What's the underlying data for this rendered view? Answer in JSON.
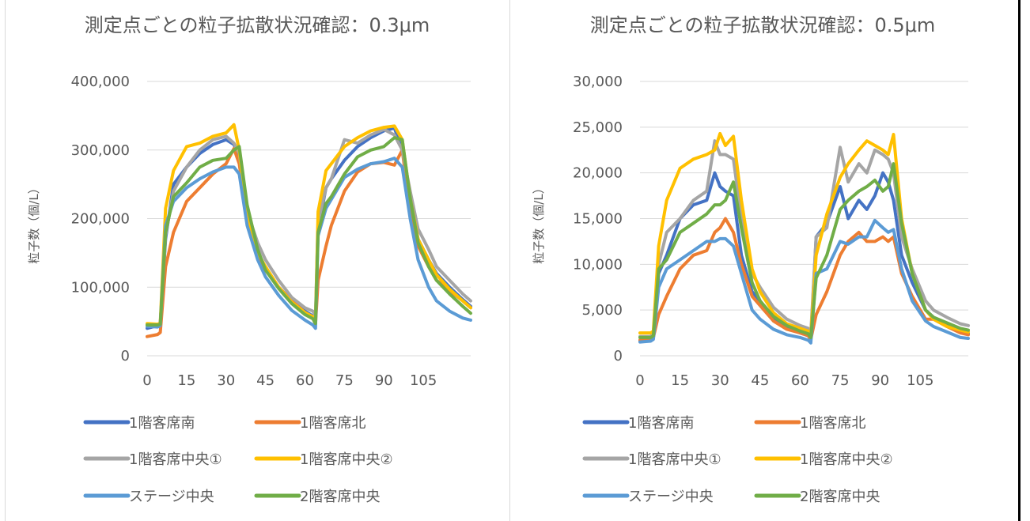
{
  "chart_data": [
    {
      "type": "line",
      "title": "測定点ごとの粒子拡散状況確認：0.3μm",
      "ylabel": "粒子数（個/L）",
      "xlabel": "",
      "ylim": [
        0,
        400000
      ],
      "xlim": [
        0,
        123
      ],
      "yticks": [
        0,
        100000,
        200000,
        300000,
        400000
      ],
      "yticklabels": [
        "0",
        "100,000",
        "200,000",
        "300,000",
        "400,000"
      ],
      "xticks": [
        0,
        15,
        30,
        45,
        60,
        75,
        90,
        105
      ],
      "xticklabels": [
        "0",
        "15",
        "30",
        "45",
        "60",
        "75",
        "90",
        "105"
      ],
      "grid": true,
      "legend": "bottom",
      "x": [
        0,
        4,
        5,
        7,
        10,
        15,
        20,
        25,
        30,
        33,
        35,
        38,
        42,
        45,
        50,
        55,
        60,
        63,
        64,
        65,
        68,
        70,
        75,
        80,
        85,
        90,
        94,
        97,
        100,
        103,
        107,
        110,
        115,
        120,
        123
      ],
      "series": [
        {
          "name": "1階客席南",
          "color": "#4472c4",
          "values": [
            40000,
            44000,
            47000,
            170000,
            250000,
            275000,
            295000,
            308000,
            315000,
            308000,
            290000,
            200000,
            150000,
            125000,
            100000,
            80000,
            65000,
            58000,
            52000,
            185000,
            245000,
            258000,
            285000,
            305000,
            318000,
            328000,
            332000,
            300000,
            230000,
            170000,
            140000,
            120000,
            100000,
            82000,
            72000
          ]
        },
        {
          "name": "1階客席北",
          "color": "#ed7d31",
          "values": [
            28000,
            31000,
            34000,
            130000,
            180000,
            225000,
            245000,
            265000,
            280000,
            302000,
            280000,
            200000,
            150000,
            125000,
            100000,
            80000,
            63000,
            55000,
            46000,
            110000,
            160000,
            190000,
            240000,
            268000,
            280000,
            282000,
            278000,
            300000,
            210000,
            160000,
            130000,
            110000,
            95000,
            80000,
            70000
          ]
        },
        {
          "name": "1階客席中央①",
          "color": "#a5a5a5",
          "values": [
            44000,
            44000,
            46000,
            175000,
            240000,
            275000,
            300000,
            315000,
            320000,
            310000,
            295000,
            210000,
            165000,
            140000,
            110000,
            85000,
            70000,
            65000,
            58000,
            195000,
            245000,
            258000,
            315000,
            310000,
            322000,
            330000,
            322000,
            300000,
            240000,
            185000,
            155000,
            130000,
            110000,
            90000,
            80000
          ]
        },
        {
          "name": "1階客席中央②",
          "color": "#ffc000",
          "values": [
            47000,
            46000,
            48000,
            215000,
            270000,
            305000,
            310000,
            320000,
            325000,
            337000,
            300000,
            205000,
            150000,
            130000,
            100000,
            78000,
            63000,
            57000,
            47000,
            210000,
            270000,
            280000,
            305000,
            318000,
            328000,
            333000,
            335000,
            315000,
            230000,
            170000,
            140000,
            118000,
            97000,
            80000,
            70000
          ]
        },
        {
          "name": "ステージ中央",
          "color": "#5b9bd5",
          "values": [
            43000,
            42000,
            44000,
            190000,
            225000,
            245000,
            258000,
            268000,
            275000,
            275000,
            265000,
            190000,
            140000,
            115000,
            88000,
            66000,
            52000,
            45000,
            40000,
            175000,
            215000,
            228000,
            260000,
            272000,
            280000,
            283000,
            288000,
            275000,
            200000,
            140000,
            100000,
            80000,
            65000,
            55000,
            52000
          ]
        },
        {
          "name": "2階客席中央",
          "color": "#70ad47",
          "values": [
            45000,
            45000,
            46000,
            180000,
            232000,
            252000,
            275000,
            285000,
            288000,
            300000,
            305000,
            220000,
            155000,
            125000,
            98000,
            76000,
            60000,
            54000,
            47000,
            180000,
            222000,
            232000,
            265000,
            290000,
            300000,
            305000,
            318000,
            315000,
            230000,
            165000,
            130000,
            110000,
            90000,
            72000,
            62000
          ]
        }
      ]
    },
    {
      "type": "line",
      "title": "測定点ごとの粒子拡散状況確認：0.5μm",
      "ylabel": "粒子数（個/L）",
      "xlabel": "",
      "ylim": [
        0,
        30000
      ],
      "xlim": [
        0,
        123
      ],
      "yticks": [
        0,
        5000,
        10000,
        15000,
        20000,
        25000,
        30000
      ],
      "yticklabels": [
        "0",
        "5,000",
        "10,000",
        "15,000",
        "20,000",
        "25,000",
        "30,000"
      ],
      "xticks": [
        0,
        15,
        30,
        45,
        60,
        75,
        90,
        105
      ],
      "xticklabels": [
        "0",
        "15",
        "30",
        "45",
        "60",
        "75",
        "90",
        "105"
      ],
      "grid": true,
      "legend": "bottom",
      "x": [
        0,
        4,
        5,
        7,
        10,
        15,
        20,
        25,
        28,
        30,
        32,
        35,
        38,
        42,
        45,
        50,
        55,
        60,
        63,
        64,
        66,
        70,
        75,
        78,
        82,
        85,
        88,
        91,
        93,
        95,
        98,
        102,
        107,
        110,
        115,
        120,
        123
      ],
      "series": [
        {
          "name": "1階客席南",
          "color": "#4472c4",
          "values": [
            1600,
            1800,
            2200,
            9000,
            11000,
            15000,
            16500,
            17000,
            20000,
            18500,
            18000,
            17500,
            11000,
            7000,
            6000,
            4000,
            3000,
            2500,
            2200,
            1800,
            13000,
            14500,
            18500,
            15000,
            17000,
            16000,
            17500,
            20000,
            19000,
            17000,
            11000,
            8000,
            5000,
            4200,
            3500,
            2700,
            2400
          ]
        },
        {
          "name": "1階客席北",
          "color": "#ed7d31",
          "values": [
            1700,
            1800,
            2000,
            4500,
            6500,
            9500,
            11000,
            11500,
            13500,
            14000,
            15000,
            13500,
            10000,
            6500,
            5500,
            3800,
            2900,
            2500,
            2200,
            1800,
            4500,
            7000,
            11000,
            12500,
            13500,
            12500,
            12500,
            13000,
            12500,
            13000,
            9000,
            6500,
            4000,
            4000,
            3200,
            2500,
            2300
          ]
        },
        {
          "name": "1階客席中央①",
          "color": "#a5a5a5",
          "values": [
            2100,
            2100,
            2400,
            10000,
            13500,
            15000,
            17000,
            18000,
            23500,
            22000,
            22000,
            21500,
            15000,
            9000,
            7500,
            5300,
            4000,
            3300,
            3000,
            2400,
            13000,
            14000,
            22800,
            19000,
            21000,
            20000,
            22500,
            22000,
            21500,
            20000,
            13000,
            9500,
            6000,
            5000,
            4200,
            3500,
            3300
          ]
        },
        {
          "name": "1階客席中央②",
          "color": "#ffc000",
          "values": [
            2500,
            2500,
            2700,
            12000,
            17000,
            20500,
            21500,
            22000,
            22500,
            24300,
            23000,
            24000,
            17000,
            9500,
            7000,
            4700,
            3500,
            3000,
            2700,
            2200,
            11000,
            15500,
            19500,
            21000,
            22500,
            23500,
            23000,
            22500,
            22000,
            24200,
            15000,
            9000,
            5000,
            4000,
            3200,
            2800,
            2600
          ]
        },
        {
          "name": "ステージ中央",
          "color": "#5b9bd5",
          "values": [
            1500,
            1600,
            1800,
            7500,
            9500,
            10500,
            11500,
            12500,
            12500,
            12800,
            12800,
            12000,
            9000,
            5000,
            4000,
            2900,
            2300,
            2000,
            1700,
            1400,
            9000,
            9500,
            12500,
            12200,
            13000,
            13000,
            14800,
            14000,
            13500,
            13800,
            9500,
            6000,
            3800,
            3200,
            2600,
            2000,
            1900
          ]
        },
        {
          "name": "2階客席中央",
          "color": "#70ad47",
          "values": [
            2000,
            2000,
            2200,
            9500,
            10500,
            13500,
            14500,
            15500,
            16500,
            16500,
            17000,
            19000,
            14000,
            8000,
            6000,
            4300,
            3300,
            2700,
            2400,
            2000,
            8500,
            11000,
            16000,
            17000,
            18000,
            18500,
            19200,
            18000,
            18500,
            21000,
            14500,
            9000,
            5000,
            4200,
            3600,
            3000,
            2800
          ]
        }
      ]
    }
  ]
}
